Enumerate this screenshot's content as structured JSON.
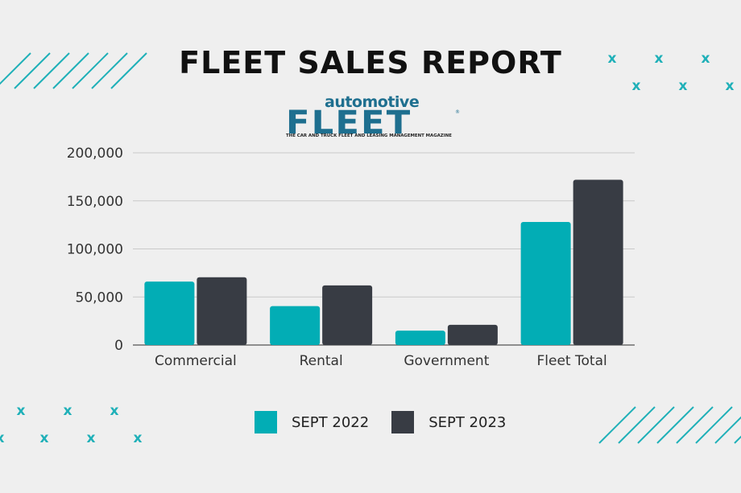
{
  "header": {
    "title": "FLEET SALES REPORT"
  },
  "logo": {
    "top_word": "automotive",
    "main_word": "FLEET",
    "registered": "®",
    "tagline": "THE CAR AND TRUCK FLEET AND LEASING MANAGEMENT MAGAZINE"
  },
  "colors": {
    "sept_2022": "#02adb5",
    "sept_2023": "#383c44",
    "accent": "#1fb0b8",
    "grid": "#c9c9c9",
    "axis_text": "#333333"
  },
  "decor": {
    "x_mark": "x",
    "icons": [
      "diagonal-stripes-icon",
      "x-pattern-icon"
    ]
  },
  "chart_data": {
    "type": "bar",
    "title": "FLEET SALES REPORT",
    "xlabel": "",
    "ylabel": "",
    "categories": [
      "Commercial",
      "Rental",
      "Government",
      "Fleet Total"
    ],
    "series": [
      {
        "name": "SEPT 2022",
        "values": [
          66000,
          40500,
          15000,
          128000
        ]
      },
      {
        "name": "SEPT 2023",
        "values": [
          70500,
          62000,
          21000,
          172000
        ]
      }
    ],
    "ylim": [
      0,
      200000
    ],
    "yticks": [
      0,
      50000,
      100000,
      150000,
      200000
    ],
    "ytick_labels": [
      "0",
      "50,000",
      "100,000",
      "150,000",
      "200,000"
    ],
    "grid": true,
    "legend_position": "bottom-center"
  }
}
